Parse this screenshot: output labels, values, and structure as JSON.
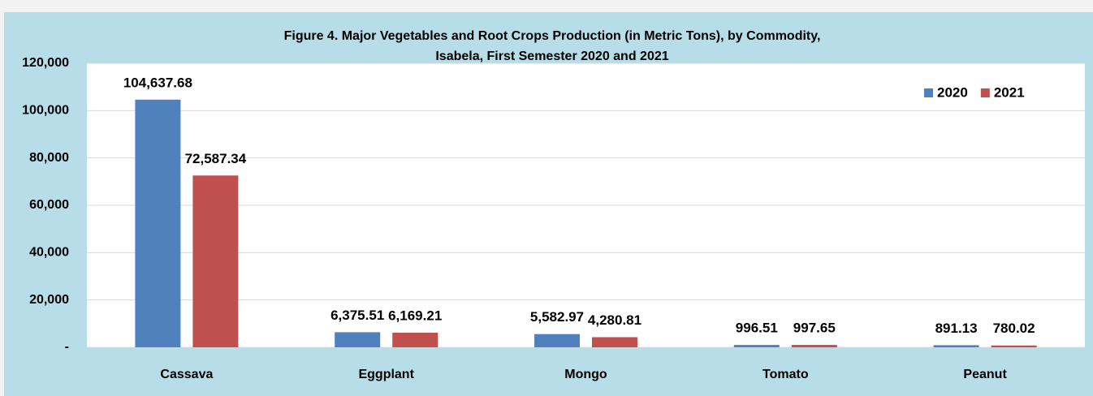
{
  "chart_data": {
    "type": "bar",
    "title": [
      "Figure 4. Major Vegetables and Root Crops Production (in Metric Tons), by Commodity,",
      "Isabela, First Semester 2020 and 2021"
    ],
    "categories": [
      "Cassava",
      "Eggplant",
      "Mongo",
      "Tomato",
      "Peanut"
    ],
    "series": [
      {
        "name": "2020",
        "color": "#4f81bd",
        "values": [
          104637.68,
          6375.51,
          5582.97,
          996.51,
          891.13
        ],
        "value_labels": [
          "104,637.68",
          "6,375.51",
          "5,582.97",
          "996.51",
          "891.13"
        ]
      },
      {
        "name": "2021",
        "color": "#c0504d",
        "values": [
          72587.34,
          6169.21,
          4280.81,
          997.65,
          780.02
        ],
        "value_labels": [
          "72,587.34",
          "6,169.21",
          "4,280.81",
          "997.65",
          "780.02"
        ]
      }
    ],
    "ylim": [
      0,
      120000
    ],
    "yticks": [
      {
        "value": 0,
        "label": "-"
      },
      {
        "value": 20000,
        "label": "20,000"
      },
      {
        "value": 40000,
        "label": "40,000"
      },
      {
        "value": 60000,
        "label": "60,000"
      },
      {
        "value": 80000,
        "label": "80,000"
      },
      {
        "value": 100000,
        "label": "100,000"
      },
      {
        "value": 120000,
        "label": "120,000"
      }
    ],
    "grid": true,
    "legend": "top-right"
  }
}
